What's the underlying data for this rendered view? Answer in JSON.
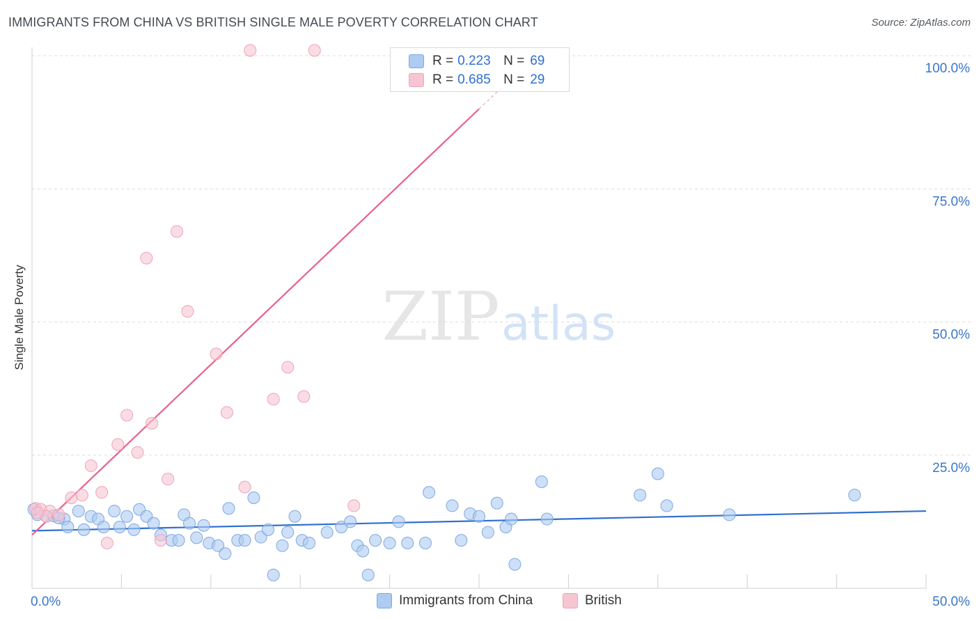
{
  "header": {
    "title": "IMMIGRANTS FROM CHINA VS BRITISH SINGLE MALE POVERTY CORRELATION CHART",
    "source": "Source: ZipAtlas.com"
  },
  "watermark": {
    "zip": "ZIP",
    "atlas": "atlas"
  },
  "legend": {
    "r_label": "R =",
    "n_label": "N =",
    "entries": [
      {
        "r": "0.223",
        "n": "69"
      },
      {
        "r": "0.685",
        "n": "29"
      }
    ]
  },
  "colors": {
    "china_fill": "#aecbf2",
    "china_stroke": "#7ea7e0",
    "china_line": "#2f6fd0",
    "british_fill": "#f7c5d2",
    "british_stroke": "#eea3b8",
    "british_line": "#e8608a",
    "tick_label": "#3a76c8",
    "grid": "#dcdcdc"
  },
  "chart_data": {
    "type": "scatter",
    "title": "IMMIGRANTS FROM CHINA VS BRITISH SINGLE MALE POVERTY CORRELATION CHART",
    "xlabel": "",
    "ylabel": "Single Male Poverty",
    "xlim": [
      0,
      50
    ],
    "ylim": [
      0,
      100
    ],
    "x_tick_labels": [
      "0.0%",
      "50.0%"
    ],
    "y_ticks": [
      25,
      50,
      75,
      100
    ],
    "y_tick_labels": [
      "25.0%",
      "50.0%",
      "75.0%",
      "100.0%"
    ],
    "grid": true,
    "legend_position": "top-center",
    "series": [
      {
        "name": "Immigrants from China",
        "r": 0.223,
        "n": 69,
        "trend": {
          "x": [
            0,
            50
          ],
          "y": [
            10.8,
            14.5
          ]
        },
        "points": [
          [
            0.3,
            13.8
          ],
          [
            0.8,
            13.5
          ],
          [
            1.2,
            13.6
          ],
          [
            1.8,
            13.0
          ],
          [
            2.0,
            11.5
          ],
          [
            2.6,
            14.5
          ],
          [
            2.9,
            11.0
          ],
          [
            3.3,
            13.5
          ],
          [
            3.7,
            13.0
          ],
          [
            4.0,
            11.5
          ],
          [
            4.6,
            14.5
          ],
          [
            4.9,
            11.5
          ],
          [
            5.3,
            13.5
          ],
          [
            5.7,
            11.0
          ],
          [
            6.0,
            14.8
          ],
          [
            6.4,
            13.5
          ],
          [
            6.8,
            12.2
          ],
          [
            7.2,
            10.0
          ],
          [
            7.8,
            9.0
          ],
          [
            8.2,
            9.0
          ],
          [
            8.5,
            13.8
          ],
          [
            8.8,
            12.2
          ],
          [
            9.2,
            9.5
          ],
          [
            9.6,
            11.8
          ],
          [
            9.9,
            8.5
          ],
          [
            10.4,
            8.0
          ],
          [
            10.8,
            6.5
          ],
          [
            11.0,
            15.0
          ],
          [
            11.5,
            9.0
          ],
          [
            11.9,
            9.0
          ],
          [
            12.4,
            17.0
          ],
          [
            12.8,
            9.6
          ],
          [
            13.2,
            11.0
          ],
          [
            13.5,
            2.5
          ],
          [
            14.0,
            8.0
          ],
          [
            14.3,
            10.5
          ],
          [
            14.7,
            13.5
          ],
          [
            15.1,
            9.0
          ],
          [
            15.5,
            8.5
          ],
          [
            16.5,
            10.5
          ],
          [
            17.3,
            11.5
          ],
          [
            17.8,
            12.5
          ],
          [
            18.2,
            8.0
          ],
          [
            18.5,
            7.0
          ],
          [
            18.8,
            2.5
          ],
          [
            19.2,
            9.0
          ],
          [
            20.0,
            8.5
          ],
          [
            20.5,
            12.5
          ],
          [
            21.0,
            8.5
          ],
          [
            22.0,
            8.5
          ],
          [
            22.2,
            18.0
          ],
          [
            23.5,
            15.5
          ],
          [
            24.0,
            9.0
          ],
          [
            24.5,
            14.0
          ],
          [
            25.0,
            13.5
          ],
          [
            25.5,
            10.5
          ],
          [
            26.0,
            16.0
          ],
          [
            26.5,
            11.5
          ],
          [
            26.8,
            13.0
          ],
          [
            27.0,
            4.5
          ],
          [
            28.5,
            20.0
          ],
          [
            28.8,
            13.0
          ],
          [
            34.0,
            17.5
          ],
          [
            35.0,
            21.5
          ],
          [
            35.5,
            15.5
          ],
          [
            39.0,
            13.8
          ],
          [
            46.0,
            17.5
          ],
          [
            0.1,
            14.8
          ],
          [
            1.5,
            13.2
          ]
        ]
      },
      {
        "name": "British",
        "r": 0.685,
        "n": 29,
        "trend": {
          "x": [
            0,
            25
          ],
          "y": [
            10.0,
            90.0
          ]
        },
        "trend_ext": {
          "x": [
            25,
            28
          ],
          "y": [
            90.0,
            99.5
          ]
        },
        "points": [
          [
            0.2,
            15.0
          ],
          [
            0.5,
            14.8
          ],
          [
            1.0,
            14.5
          ],
          [
            1.5,
            13.8
          ],
          [
            2.2,
            17.0
          ],
          [
            2.8,
            17.5
          ],
          [
            3.3,
            23.0
          ],
          [
            3.9,
            18.0
          ],
          [
            4.2,
            8.5
          ],
          [
            4.8,
            27.0
          ],
          [
            5.3,
            32.5
          ],
          [
            5.9,
            25.5
          ],
          [
            6.4,
            62.0
          ],
          [
            6.7,
            31.0
          ],
          [
            7.2,
            9.0
          ],
          [
            7.6,
            20.5
          ],
          [
            8.1,
            67.0
          ],
          [
            8.7,
            52.0
          ],
          [
            10.3,
            44.0
          ],
          [
            10.9,
            33.0
          ],
          [
            11.9,
            19.0
          ],
          [
            12.2,
            101.0
          ],
          [
            13.5,
            35.5
          ],
          [
            14.3,
            41.5
          ],
          [
            15.2,
            36.0
          ],
          [
            15.8,
            101.0
          ],
          [
            18.0,
            15.5
          ],
          [
            0.8,
            13.5
          ],
          [
            0.3,
            14.2
          ]
        ]
      }
    ]
  },
  "bottom_legend": {
    "items": [
      "Immigrants from China",
      "British"
    ]
  }
}
